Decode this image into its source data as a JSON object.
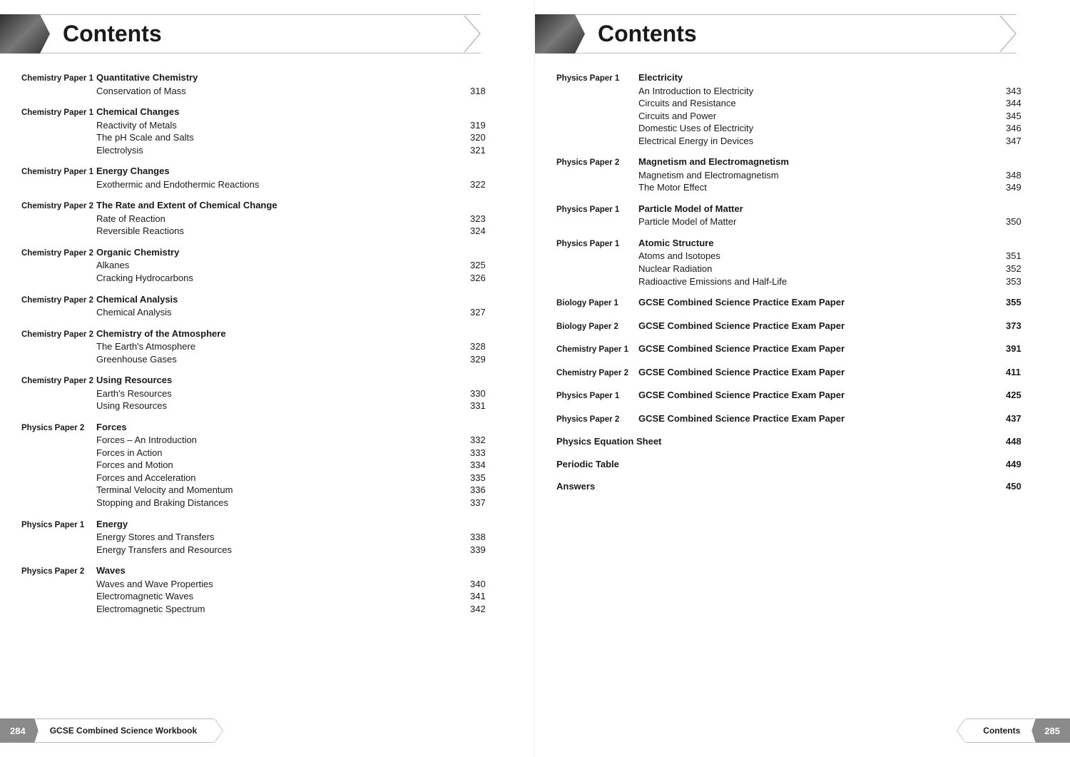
{
  "banner_title": "Contents",
  "footer_left_label": "GCSE Combined Science Workbook",
  "footer_right_label": "Contents",
  "page_num_left": "284",
  "page_num_right": "285",
  "left_sections": [
    {
      "paper": "Chemistry Paper 1",
      "title": "Quantitative Chemistry",
      "items": [
        {
          "topic": "Conservation of Mass",
          "page": "318"
        }
      ]
    },
    {
      "paper": "Chemistry Paper 1",
      "title": "Chemical Changes",
      "items": [
        {
          "topic": "Reactivity of Metals",
          "page": "319"
        },
        {
          "topic": "The pH Scale and Salts",
          "page": "320"
        },
        {
          "topic": "Electrolysis",
          "page": "321"
        }
      ]
    },
    {
      "paper": "Chemistry Paper 1",
      "title": "Energy Changes",
      "items": [
        {
          "topic": "Exothermic and Endothermic Reactions",
          "page": "322"
        }
      ]
    },
    {
      "paper": "Chemistry Paper 2",
      "title": "The Rate and Extent of Chemical Change",
      "items": [
        {
          "topic": "Rate of Reaction",
          "page": "323"
        },
        {
          "topic": "Reversible Reactions",
          "page": "324"
        }
      ]
    },
    {
      "paper": "Chemistry Paper 2",
      "title": "Organic Chemistry",
      "items": [
        {
          "topic": "Alkanes",
          "page": "325"
        },
        {
          "topic": "Cracking Hydrocarbons",
          "page": "326"
        }
      ]
    },
    {
      "paper": "Chemistry Paper 2",
      "title": "Chemical Analysis",
      "items": [
        {
          "topic": "Chemical Analysis",
          "page": "327"
        }
      ]
    },
    {
      "paper": "Chemistry Paper 2",
      "title": "Chemistry of the Atmosphere",
      "items": [
        {
          "topic": "The Earth's Atmosphere",
          "page": "328"
        },
        {
          "topic": "Greenhouse Gases",
          "page": "329"
        }
      ]
    },
    {
      "paper": "Chemistry Paper 2",
      "title": "Using Resources",
      "items": [
        {
          "topic": "Earth's Resources",
          "page": "330"
        },
        {
          "topic": "Using Resources",
          "page": "331"
        }
      ]
    },
    {
      "paper": "Physics Paper 2",
      "title": "Forces",
      "items": [
        {
          "topic": "Forces – An Introduction",
          "page": "332"
        },
        {
          "topic": "Forces in Action",
          "page": "333"
        },
        {
          "topic": "Forces and Motion",
          "page": "334"
        },
        {
          "topic": "Forces and Acceleration",
          "page": "335"
        },
        {
          "topic": "Terminal Velocity and Momentum",
          "page": "336"
        },
        {
          "topic": "Stopping and Braking Distances",
          "page": "337"
        }
      ]
    },
    {
      "paper": "Physics Paper 1",
      "title": "Energy",
      "items": [
        {
          "topic": "Energy Stores and Transfers",
          "page": "338"
        },
        {
          "topic": "Energy Transfers and Resources",
          "page": "339"
        }
      ]
    },
    {
      "paper": "Physics Paper 2",
      "title": "Waves",
      "items": [
        {
          "topic": "Waves and Wave Properties",
          "page": "340"
        },
        {
          "topic": "Electromagnetic Waves",
          "page": "341"
        },
        {
          "topic": "Electromagnetic Spectrum",
          "page": "342"
        }
      ]
    }
  ],
  "right_sections": [
    {
      "paper": "Physics Paper 1",
      "title": "Electricity",
      "items": [
        {
          "topic": "An Introduction to Electricity",
          "page": "343"
        },
        {
          "topic": "Circuits and Resistance",
          "page": "344"
        },
        {
          "topic": "Circuits and Power",
          "page": "345"
        },
        {
          "topic": "Domestic Uses of Electricity",
          "page": "346"
        },
        {
          "topic": "Electrical Energy in Devices",
          "page": "347"
        }
      ]
    },
    {
      "paper": "Physics Paper 2",
      "title": "Magnetism and Electromagnetism",
      "items": [
        {
          "topic": "Magnetism and Electromagnetism",
          "page": "348"
        },
        {
          "topic": "The Motor Effect",
          "page": "349"
        }
      ]
    },
    {
      "paper": "Physics Paper 1",
      "title": "Particle Model of Matter",
      "items": [
        {
          "topic": "Particle Model of Matter",
          "page": "350"
        }
      ]
    },
    {
      "paper": "Physics Paper 1",
      "title": "Atomic Structure",
      "items": [
        {
          "topic": "Atoms and Isotopes",
          "page": "351"
        },
        {
          "topic": "Nuclear Radiation",
          "page": "352"
        },
        {
          "topic": "Radioactive Emissions and Half-Life",
          "page": "353"
        }
      ]
    }
  ],
  "right_singles": [
    {
      "paper": "Biology Paper 1",
      "topic": "GCSE Combined Science Practice Exam Paper",
      "page": "355"
    },
    {
      "paper": "Biology Paper 2",
      "topic": "GCSE Combined Science Practice Exam Paper",
      "page": "373"
    },
    {
      "paper": "Chemistry Paper 1",
      "topic": "GCSE Combined Science Practice Exam Paper",
      "page": "391"
    },
    {
      "paper": "Chemistry Paper 2",
      "topic": "GCSE Combined Science Practice Exam Paper",
      "page": "411"
    },
    {
      "paper": "Physics Paper 1",
      "topic": "GCSE Combined Science Practice Exam Paper",
      "page": "425"
    },
    {
      "paper": "Physics Paper 2",
      "topic": "GCSE Combined Science Practice Exam Paper",
      "page": "437"
    }
  ],
  "right_plain": [
    {
      "topic": "Physics Equation Sheet",
      "page": "448"
    },
    {
      "topic": "Periodic Table",
      "page": "449"
    },
    {
      "topic": "Answers",
      "page": "450"
    }
  ]
}
